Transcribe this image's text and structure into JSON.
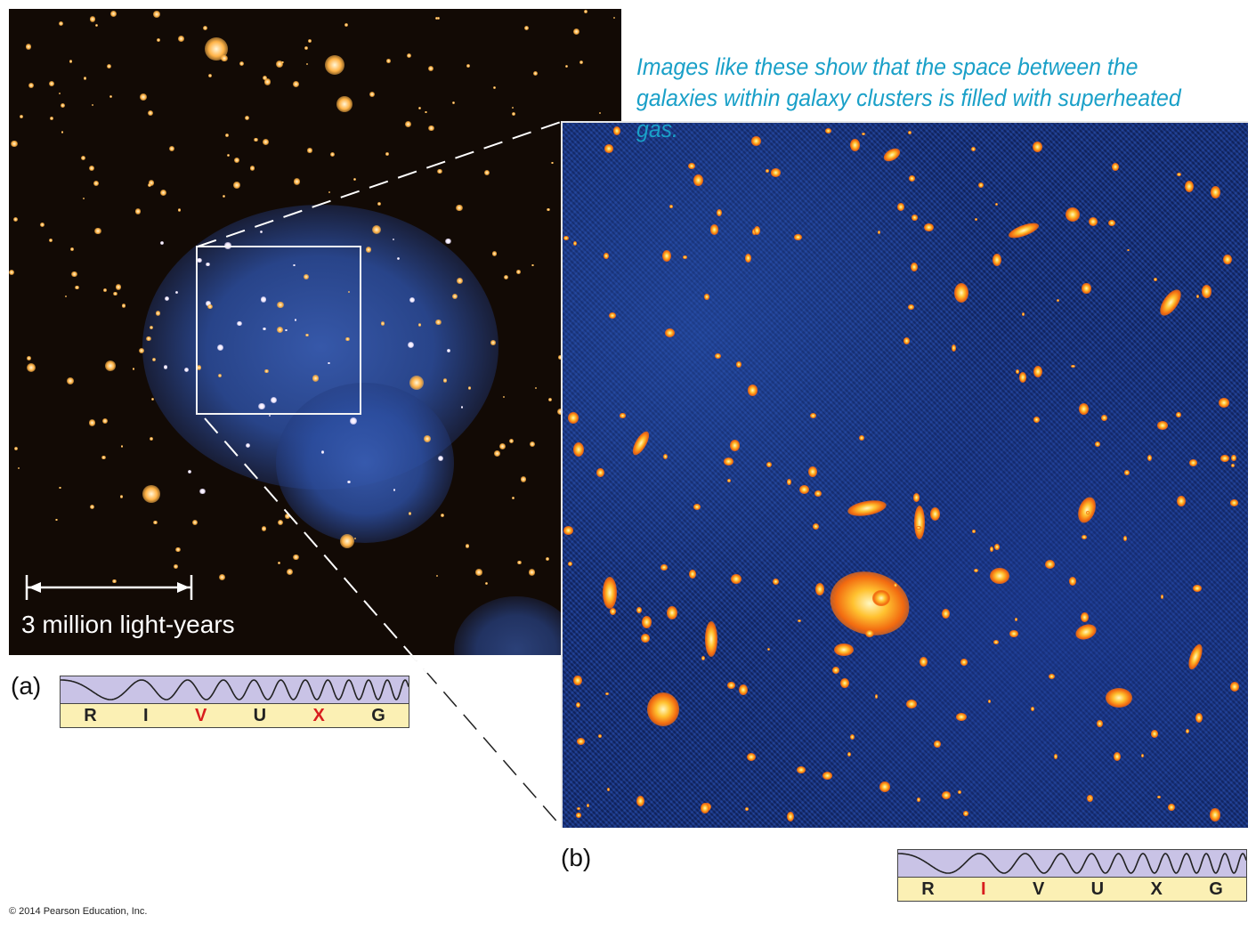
{
  "caption": "Images like these show that the space between the galaxies within galaxy clusters is filled with superheated gas.",
  "panel_a": {
    "label": "(a)",
    "scale_label": "3 million light-years",
    "spectrum": [
      {
        "letter": "R",
        "highlight": false
      },
      {
        "letter": "I",
        "highlight": false
      },
      {
        "letter": "V",
        "highlight": true
      },
      {
        "letter": "U",
        "highlight": false
      },
      {
        "letter": "X",
        "highlight": true
      },
      {
        "letter": "G",
        "highlight": false
      }
    ]
  },
  "panel_b": {
    "label": "(b)",
    "spectrum": [
      {
        "letter": "R",
        "highlight": false
      },
      {
        "letter": "I",
        "highlight": true
      },
      {
        "letter": "V",
        "highlight": false
      },
      {
        "letter": "U",
        "highlight": false
      },
      {
        "letter": "X",
        "highlight": false
      },
      {
        "letter": "G",
        "highlight": false
      }
    ]
  },
  "copyright": "© 2014 Pearson Education, Inc.",
  "colors": {
    "caption": "#1aa0c8",
    "highlight": "#d81e1e",
    "spectrum_wave_bg": "#c9c3e6",
    "spectrum_band_bg": "#fbf0b4",
    "panel_a_bg": "#120a05",
    "panel_b_bg": "#1b3a8a"
  }
}
